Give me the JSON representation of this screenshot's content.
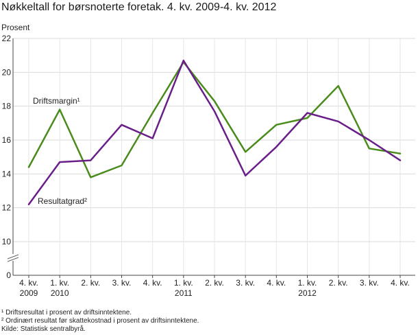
{
  "chart_data": {
    "type": "line",
    "title": "Nøkkeltall for børsnoterte foretak. 4. kv. 2009-4. kv. 2012",
    "ylabel": "Prosent",
    "xlabel": "",
    "ylim": [
      0,
      22
    ],
    "y_ticks": [
      0,
      10,
      12,
      14,
      16,
      18,
      20,
      22
    ],
    "axis_break": true,
    "grid": true,
    "categories": [
      [
        "4. kv.",
        "2009"
      ],
      [
        "1. kv.",
        "2010"
      ],
      [
        "2. kv.",
        ""
      ],
      [
        "3. kv.",
        ""
      ],
      [
        "4. kv.",
        ""
      ],
      [
        "1. kv.",
        "2011"
      ],
      [
        "2. kv.",
        ""
      ],
      [
        "3. kv.",
        ""
      ],
      [
        "4. kv.",
        ""
      ],
      [
        "1. kv.",
        "2012"
      ],
      [
        "2. kv.",
        ""
      ],
      [
        "3. kv.",
        ""
      ],
      [
        "4. kv.",
        ""
      ]
    ],
    "series": [
      {
        "name": "Driftsmargin¹",
        "color": "#4a8c1c",
        "values": [
          14.4,
          17.8,
          13.8,
          14.5,
          17.6,
          20.6,
          18.3,
          15.3,
          16.9,
          17.3,
          19.2,
          15.5,
          15.2
        ]
      },
      {
        "name": "Resultatgrad²",
        "color": "#6a1e8a",
        "values": [
          12.2,
          14.7,
          14.8,
          16.9,
          16.1,
          20.7,
          17.7,
          13.9,
          15.6,
          17.6,
          17.1,
          16.0,
          14.8
        ]
      }
    ],
    "footnotes": [
      "¹ Driftsresultat i prosent av driftsinntektene.",
      "² Ordinært resultat før skattekostnad i prosent av driftsinntektene.",
      "Kilde: Statistisk sentralbyrå."
    ]
  }
}
